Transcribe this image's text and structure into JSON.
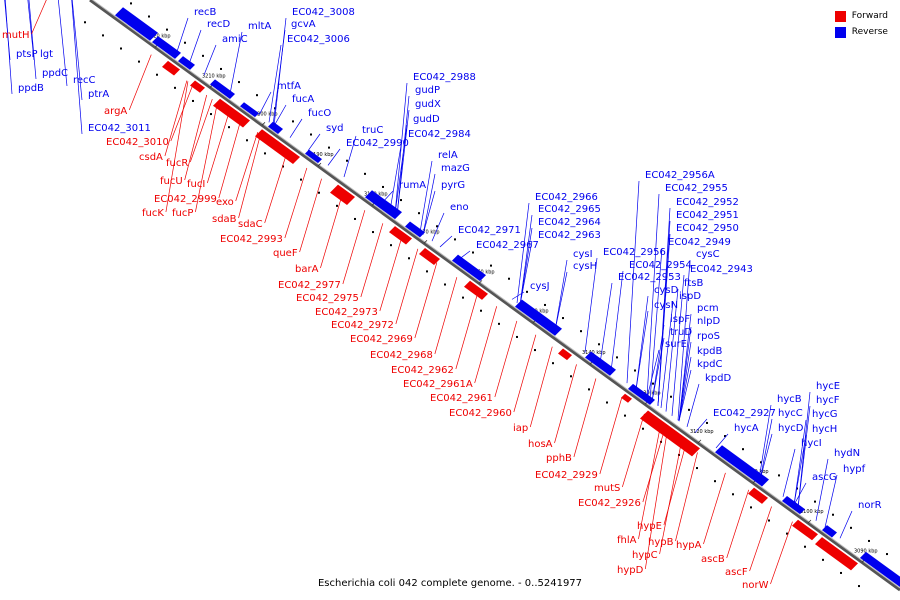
{
  "caption": "Escherichia coli 042 complete genome. - 0..5241977",
  "legend": [
    {
      "label": "Forward",
      "color": "#ee0000"
    },
    {
      "label": "Reverse",
      "color": "#0000ee"
    }
  ],
  "colors": {
    "forward": "#ee0000",
    "reverse": "#0000ee",
    "axis": "#888888"
  },
  "ticks": [
    "3220 kbp",
    "3210 kbp",
    "3200 kbp",
    "3190 kbp",
    "3180 kbp",
    "3170 kbp",
    "3160 kbp",
    "3150 kbp",
    "3140 kbp",
    "3130 kbp",
    "3120 kbp",
    "3110 kbp",
    "3100 kbp",
    "3090 kbp"
  ],
  "reverse_genes": [
    "recB",
    "recD",
    "mltA",
    "EC042_3008",
    "gcvA",
    "amiC",
    "EC042_3006",
    "ptsP",
    "lgt",
    "ppdC",
    "recC",
    "ppdB",
    "ptrA",
    "mtfA",
    "fucA",
    "fucO",
    "syd",
    "EC042_2988",
    "gudP",
    "gudX",
    "gudD",
    "truC",
    "EC042_2984",
    "EC042_2990",
    "relA",
    "mazG",
    "rumA",
    "pyrG",
    "eno",
    "EC042_2966",
    "EC042_2965",
    "EC042_2964",
    "EC042_2963",
    "EC042_2971",
    "EC042_2967",
    "cysI",
    "cysH",
    "cysJ",
    "EC042_2956A",
    "EC042_2955",
    "EC042_2952",
    "EC042_2951",
    "EC042_2950",
    "EC042_2949",
    "EC042_2956",
    "EC042_2954",
    "EC042_2953",
    "cysC",
    "EC042_2943",
    "ftsB",
    "cysD",
    "ispD",
    "cysN",
    "pcm",
    "ispF",
    "nlpD",
    "truD",
    "rpoS",
    "surE",
    "kpdB",
    "kpdC",
    "kpdD",
    "EC042_2927",
    "hycE",
    "hycB",
    "hycF",
    "hycA",
    "hycC",
    "hycG",
    "hycD",
    "hycH",
    "hycI",
    "hydN",
    "hypf",
    "ascG",
    "norR",
    "EC042_3011"
  ],
  "forward_genes": [
    "mutH",
    "argA",
    "EC042_3010",
    "csdA",
    "fucR",
    "fucU",
    "fucI",
    "EC042_2999",
    "exo",
    "fucK",
    "fucP",
    "sdaB",
    "sdaC",
    "EC042_2993",
    "queF",
    "barA",
    "EC042_2977",
    "EC042_2975",
    "EC042_2973",
    "EC042_2972",
    "EC042_2969",
    "EC042_2968",
    "EC042_2962",
    "EC042_2961A",
    "EC042_2961",
    "EC042_2960",
    "iap",
    "hosA",
    "pphB",
    "EC042_2929",
    "mutS",
    "EC042_2926",
    "hypE",
    "fhlA",
    "hypB",
    "hypA",
    "hypC",
    "hypD",
    "ascB",
    "ascF",
    "norW"
  ]
}
